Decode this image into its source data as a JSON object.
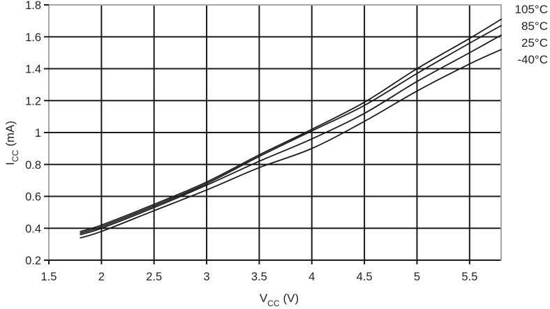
{
  "chart_data": {
    "type": "line",
    "xlabel_main": "V",
    "xlabel_sub": "CC",
    "xlabel_unit": "(V)",
    "ylabel_main": "I",
    "ylabel_sub": "CC",
    "ylabel_unit": "(mA)",
    "xlim": [
      1.5,
      5.8
    ],
    "ylim": [
      0.2,
      1.8
    ],
    "xticks": [
      1.5,
      2,
      2.5,
      3,
      3.5,
      4,
      4.5,
      5,
      5.5
    ],
    "xtick_labels": [
      "1.5",
      "2",
      "2.5",
      "3",
      "3.5",
      "4",
      "4.5",
      "5",
      "5.5"
    ],
    "yticks": [
      0.2,
      0.4,
      0.6,
      0.8,
      1,
      1.2,
      1.4,
      1.6,
      1.8
    ],
    "ytick_labels": [
      "0.2",
      "0.4",
      "0.6",
      "0.8",
      "1",
      "1.2",
      "1.4",
      "1.6",
      "1.8"
    ],
    "grid": true,
    "legend_position": "right-top",
    "x": [
      1.8,
      2.0,
      2.5,
      3.0,
      3.5,
      4.0,
      4.5,
      5.0,
      5.5,
      5.8
    ],
    "series": [
      {
        "name": "105°C",
        "values": [
          0.38,
          0.42,
          0.55,
          0.69,
          0.86,
          1.02,
          1.19,
          1.4,
          1.59,
          1.71
        ]
      },
      {
        "name": "85°C",
        "values": [
          0.37,
          0.41,
          0.54,
          0.68,
          0.85,
          1.01,
          1.17,
          1.37,
          1.56,
          1.67
        ]
      },
      {
        "name": "25°C",
        "values": [
          0.36,
          0.4,
          0.53,
          0.67,
          0.82,
          0.96,
          1.12,
          1.32,
          1.5,
          1.61
        ]
      },
      {
        "name": "-40°C",
        "values": [
          0.34,
          0.38,
          0.51,
          0.64,
          0.78,
          0.9,
          1.07,
          1.26,
          1.43,
          1.52
        ]
      }
    ],
    "colors": {
      "line": "#1a1a1a",
      "grid": "#1a1a1a",
      "frame": "#a6a6a6",
      "text": "#231f20",
      "background": "#ffffff"
    }
  }
}
